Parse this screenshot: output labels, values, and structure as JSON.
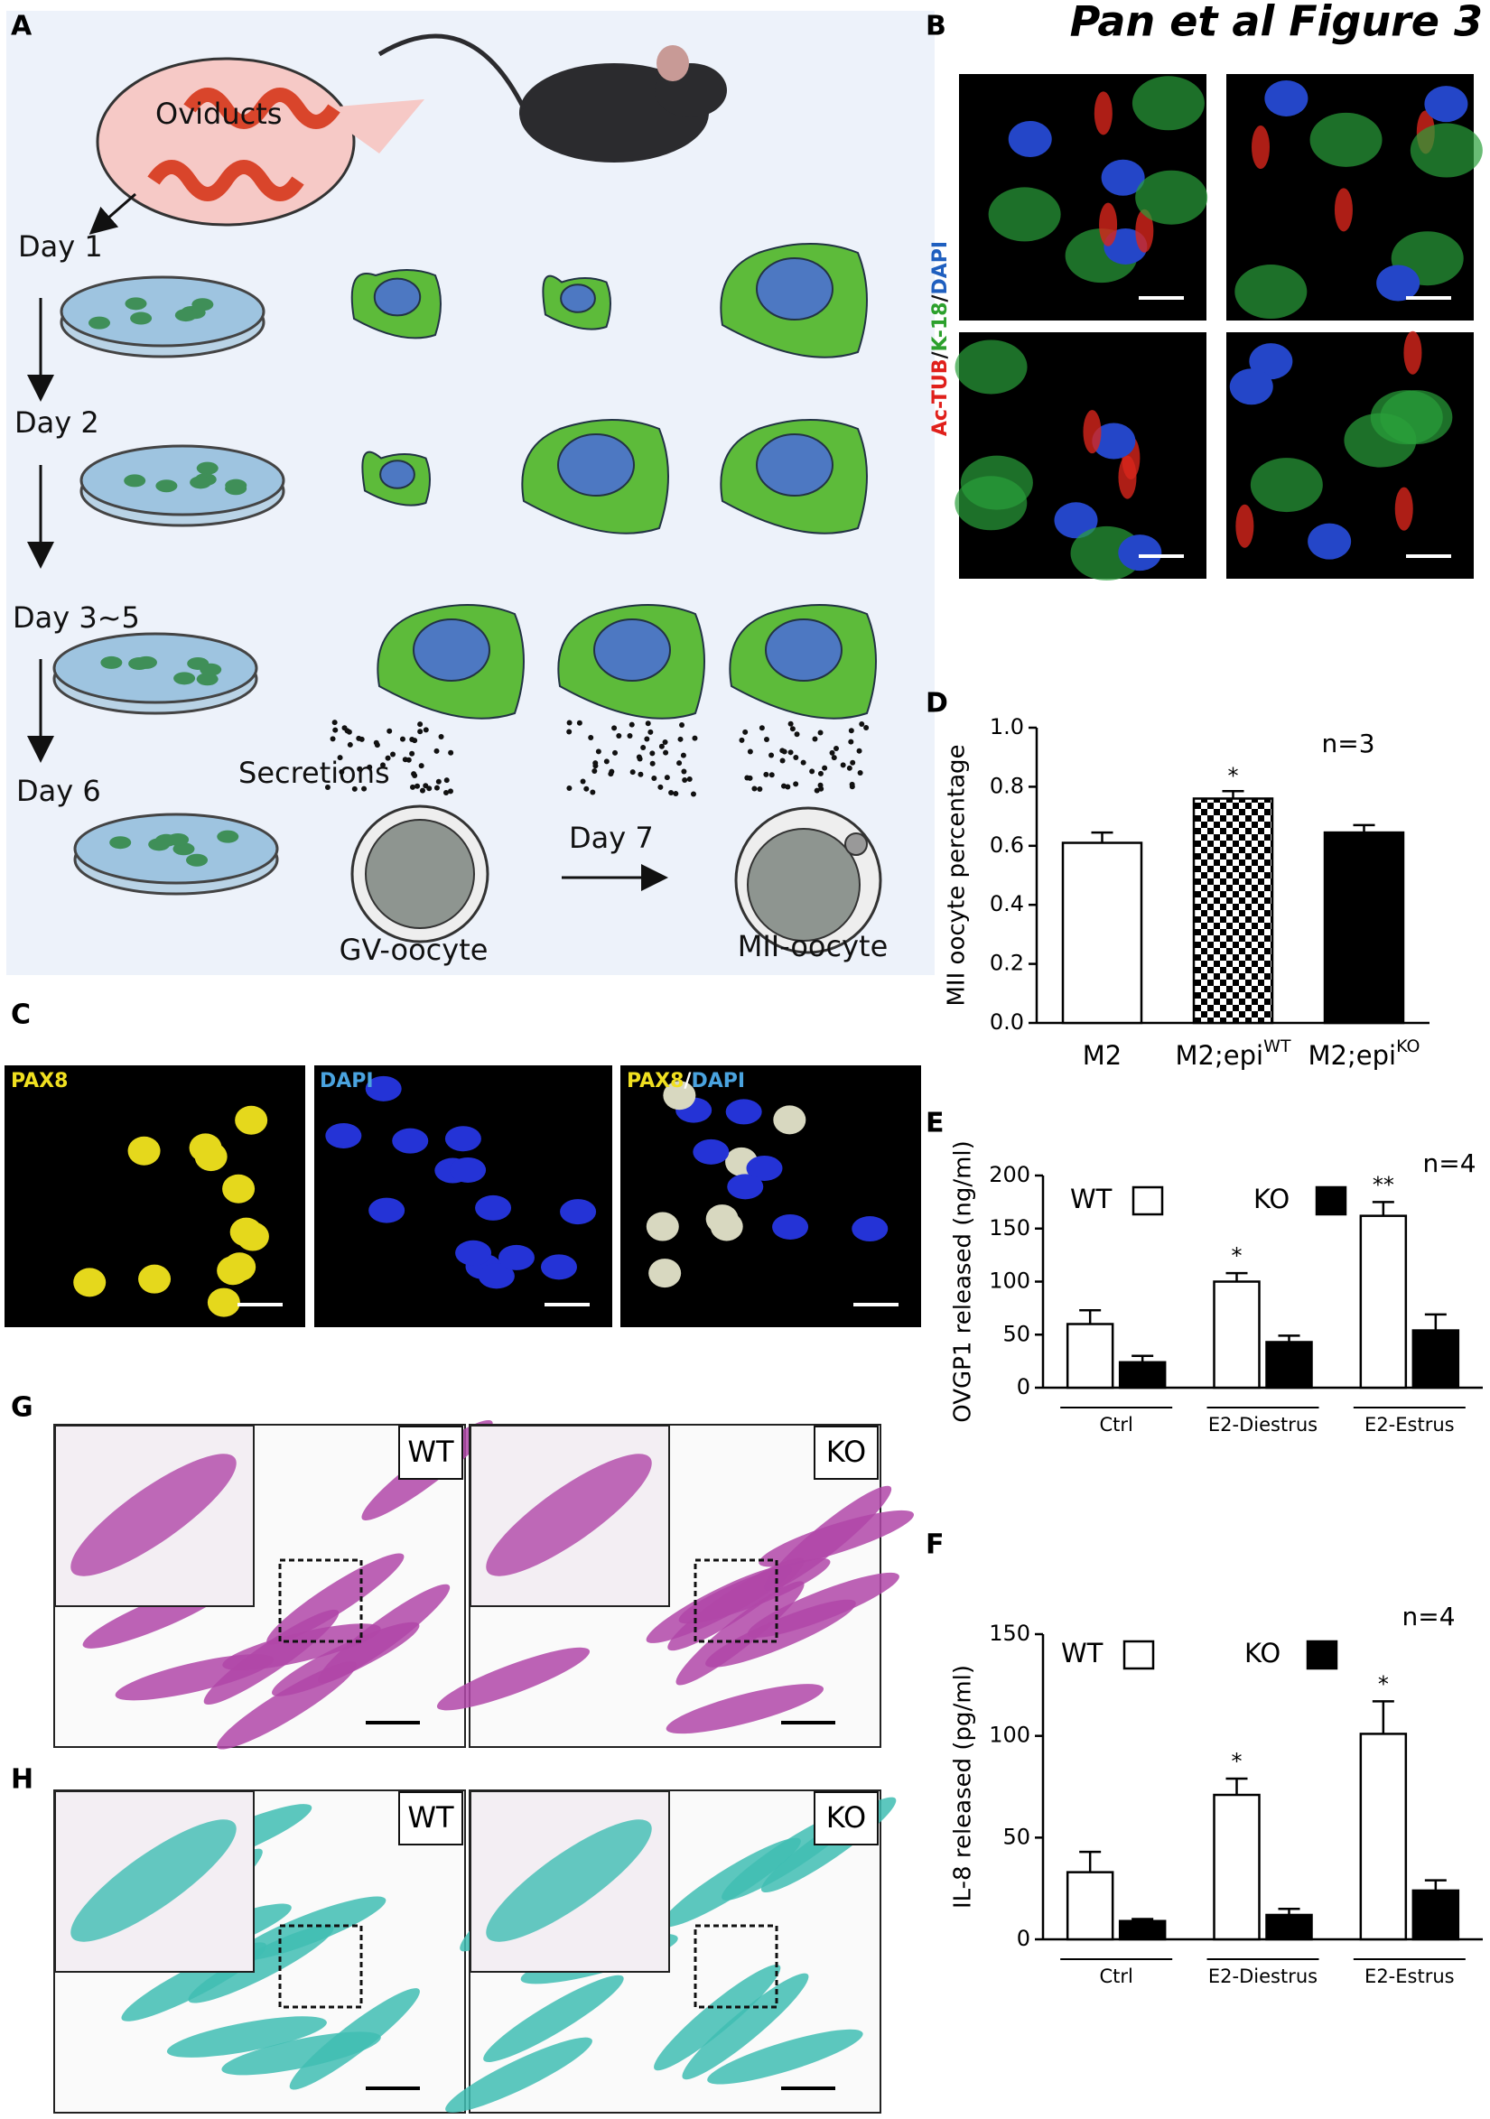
{
  "figure_title": "Pan et al Figure 3",
  "panel_labels": [
    "A",
    "B",
    "C",
    "D",
    "E",
    "F",
    "G",
    "H"
  ],
  "panel_a": {
    "oviducts": "Oviducts",
    "days": [
      "Day 1",
      "Day 2",
      "Day 3~5",
      "Day 6"
    ],
    "secretions": "Secretions",
    "day7": "Day 7",
    "gv": "GV-oocyte",
    "mii": "MII-oocyte"
  },
  "panel_b": {
    "stain": [
      "Ac-TUB",
      "/",
      "K-18",
      "/",
      "DAPI"
    ]
  },
  "panel_c": {
    "labels": [
      "PAX8",
      "DAPI"
    ],
    "merged": [
      "PAX8",
      "/",
      "DAPI"
    ]
  },
  "panel_g": {
    "labels": [
      "WT",
      "KO"
    ]
  },
  "panel_h": {
    "labels": [
      "WT",
      "KO"
    ]
  },
  "chart_data": [
    {
      "type": "bar",
      "ylabel": "MII oocyte percentage",
      "note": "n=3",
      "categories": [
        "M2",
        "M2;epi",
        "M2;epi"
      ],
      "category_superscripts": [
        null,
        "WT",
        "KO"
      ],
      "values": [
        0.61,
        0.76,
        0.645
      ],
      "errors": [
        0.035,
        0.025,
        0.025
      ],
      "annotations": [
        null,
        "*",
        null
      ],
      "fills": [
        "#ffffff",
        "checker",
        "#000000"
      ],
      "ylim": [
        0,
        1.0
      ],
      "yticks": [
        {
          "value": 0,
          "label": "0.0"
        },
        0.2,
        0.4,
        0.6,
        0.8,
        {
          "value": 1.0,
          "label": "1.0"
        }
      ]
    },
    {
      "type": "bar",
      "ylabel": "OVGP1 released (ng/ml)",
      "note": "n=4",
      "categories": [
        "Ctrl",
        "E2-Diestrus",
        "E2-Estrus"
      ],
      "series": [
        {
          "name": "WT",
          "color": "#ffffff",
          "values": [
            60,
            100,
            162
          ],
          "errors": [
            13,
            8,
            13
          ],
          "annotations": [
            null,
            "*",
            "**"
          ]
        },
        {
          "name": "KO",
          "color": "#000000",
          "values": [
            24,
            43,
            54
          ],
          "errors": [
            6,
            6,
            15
          ],
          "annotations": [
            null,
            null,
            null
          ]
        }
      ],
      "ylim": [
        0,
        200
      ],
      "yticks": [
        0,
        50,
        100,
        150,
        200
      ]
    },
    {
      "type": "bar",
      "ylabel": "IL-8 released (pg/ml)",
      "note": "n=4",
      "categories": [
        "Ctrl",
        "E2-Diestrus",
        "E2-Estrus"
      ],
      "series": [
        {
          "name": "WT",
          "color": "#ffffff",
          "values": [
            33,
            71,
            101
          ],
          "errors": [
            10,
            8,
            16
          ],
          "annotations": [
            null,
            "*",
            "*"
          ]
        },
        {
          "name": "KO",
          "color": "#000000",
          "values": [
            9,
            12,
            24
          ],
          "errors": [
            1,
            3,
            5
          ],
          "annotations": [
            null,
            null,
            null
          ]
        }
      ],
      "ylim": [
        0,
        150
      ],
      "yticks": [
        0,
        50,
        100,
        150
      ]
    }
  ]
}
